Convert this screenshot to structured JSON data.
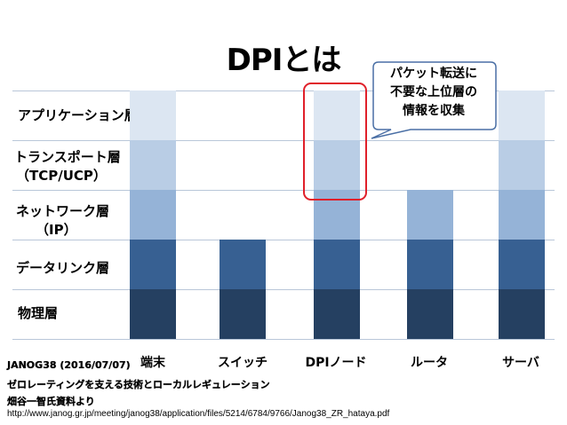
{
  "title": "DPIとは",
  "layers": [
    {
      "id": "app",
      "lines": [
        "アプリケーション層"
      ]
    },
    {
      "id": "transport",
      "lines": [
        "トランスポート層",
        "（TCP/UCP）"
      ]
    },
    {
      "id": "network",
      "lines": [
        "ネットワーク層",
        "（IP）"
      ]
    },
    {
      "id": "datalink",
      "lines": [
        "データリンク層"
      ]
    },
    {
      "id": "physical",
      "lines": [
        "物理層"
      ]
    }
  ],
  "nodes": [
    {
      "label": "端末",
      "layers": 5
    },
    {
      "label": "スイッチ",
      "layers": 2
    },
    {
      "label": "DPIノード",
      "layers": 5
    },
    {
      "label": "ルータ",
      "layers": 3
    },
    {
      "label": "サーバ",
      "layers": 5
    }
  ],
  "callout": {
    "lines": [
      "パケット転送に",
      "不要な上位層の",
      "情報を収集"
    ]
  },
  "source": {
    "line1": "JANOG38 (2016/07/07)",
    "line2": "ゼロレーティングを支える技術とローカルレギュレーション",
    "line3": "畑谷一智氏資料より",
    "url": "http://www.janog.gr.jp/meeting/janog38/application/files/5214/6784/9766/Janog38_ZR_hataya.pdf"
  },
  "colors": {
    "layer_colors": [
      "#dce6f2",
      "#b9cde5",
      "#95b3d7",
      "#376092",
      "#254061"
    ],
    "highlight": "#e0202a",
    "callout_border": "#4a6fa5"
  }
}
